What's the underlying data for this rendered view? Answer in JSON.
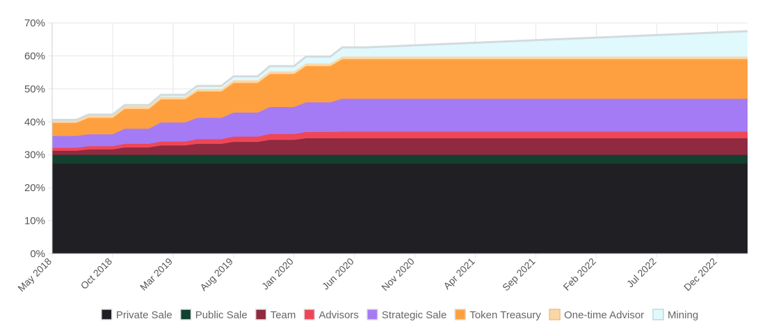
{
  "chart_data": {
    "type": "area",
    "stacked": true,
    "title": "",
    "xlabel": "",
    "ylabel": "",
    "ylim": [
      0,
      70
    ],
    "y_ticks": [
      "0%",
      "10%",
      "20%",
      "30%",
      "40%",
      "50%",
      "60%",
      "70%"
    ],
    "x_tick_labels": [
      "May 2018",
      "Oct 2018",
      "Mar 2019",
      "Aug 2019",
      "Jan 2020",
      "Jun 2020",
      "Nov 2020",
      "Apr 2021",
      "Sep 2021",
      "Feb 2022",
      "Jul 2022",
      "Dec 2022"
    ],
    "x_range_months": [
      0,
      57.5
    ],
    "x": [
      0,
      2,
      3,
      5,
      6,
      8,
      9,
      11,
      12,
      14,
      15,
      17,
      18,
      20,
      21,
      23,
      24,
      26,
      57.5
    ],
    "grid": true,
    "legend_position": "bottom",
    "series": [
      {
        "name": "Private Sale",
        "color": "#202024",
        "values": [
          27.3,
          27.3,
          27.3,
          27.3,
          27.3,
          27.3,
          27.3,
          27.3,
          27.3,
          27.3,
          27.3,
          27.3,
          27.3,
          27.3,
          27.3,
          27.3,
          27.3,
          27.3,
          27.3
        ]
      },
      {
        "name": "Public Sale",
        "color": "#14402f",
        "values": [
          2.7,
          2.7,
          2.7,
          2.7,
          2.7,
          2.7,
          2.7,
          2.7,
          2.7,
          2.7,
          2.7,
          2.7,
          2.7,
          2.7,
          2.7,
          2.7,
          2.7,
          2.7,
          2.7
        ]
      },
      {
        "name": "Team",
        "color": "#8f2a40",
        "values": [
          1.2,
          1.2,
          1.6,
          1.6,
          2.2,
          2.2,
          2.8,
          2.8,
          3.3,
          3.3,
          3.9,
          3.9,
          4.5,
          4.5,
          5,
          5,
          5,
          5,
          5
        ]
      },
      {
        "name": "Advisors",
        "color": "#ef4657",
        "values": [
          0.9,
          0.9,
          1.0,
          1.0,
          1.1,
          1.1,
          1.2,
          1.2,
          1.4,
          1.4,
          1.6,
          1.6,
          1.8,
          1.8,
          1.9,
          1.9,
          2,
          2,
          2
        ]
      },
      {
        "name": "Strategic Sale",
        "color": "#a47bf4",
        "values": [
          3.6,
          3.6,
          3.6,
          3.6,
          4.6,
          4.6,
          5.8,
          5.8,
          6.5,
          6.5,
          7.3,
          7.3,
          8.2,
          8.2,
          9,
          9,
          10,
          10,
          10
        ]
      },
      {
        "name": "Token Treasury",
        "color": "#ffa040",
        "values": [
          4,
          4,
          5,
          5,
          6,
          6,
          7,
          7,
          8,
          8,
          9,
          9,
          10,
          10,
          11,
          11,
          12,
          12,
          12
        ]
      },
      {
        "name": "One-time Advisor",
        "color": "#fbd7a6",
        "values": [
          0.8,
          0.8,
          0.8,
          0.8,
          0.8,
          0.8,
          0.8,
          0.8,
          0.8,
          0.8,
          0.8,
          0.8,
          0.8,
          0.8,
          0.8,
          0.8,
          0.8,
          0.8,
          0.8
        ]
      },
      {
        "name": "Mining",
        "color": "#e0f9fd",
        "values": [
          0.1,
          0.1,
          0.2,
          0.2,
          0.4,
          0.4,
          0.6,
          0.6,
          0.9,
          0.9,
          1.2,
          1.2,
          1.6,
          1.6,
          2.1,
          2.1,
          2.8,
          2.8,
          7.7
        ]
      }
    ]
  }
}
